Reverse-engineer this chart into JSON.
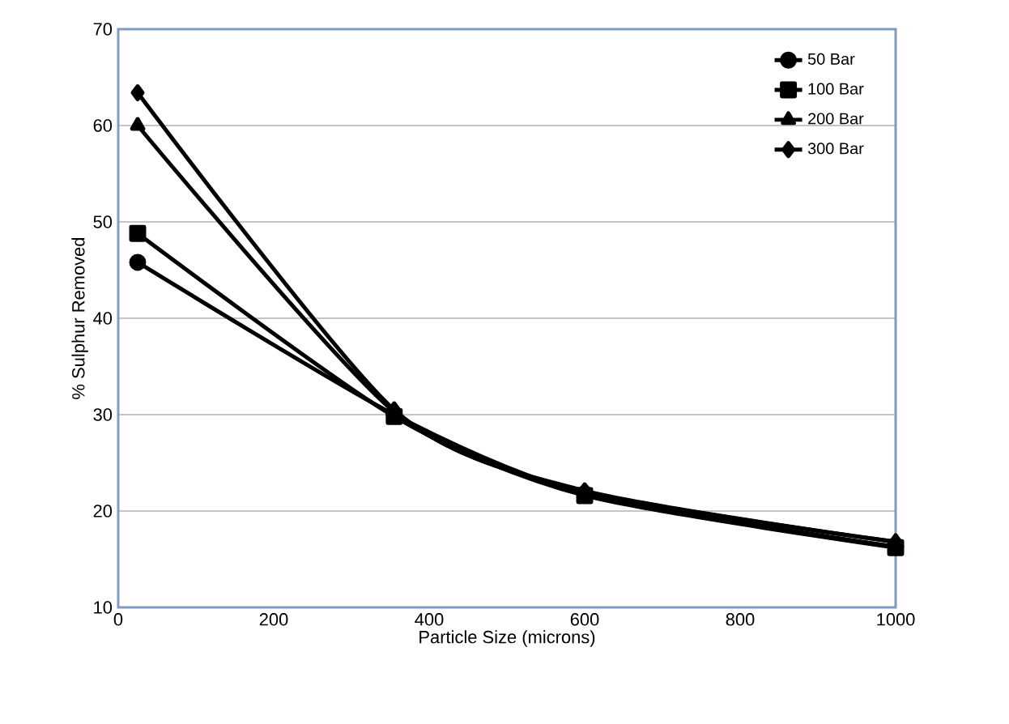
{
  "chart_data": {
    "type": "line",
    "xlabel": "Particle Size (microns)",
    "ylabel": "% Sulphur Removed",
    "xlim": [
      0,
      1000
    ],
    "xticks": [
      0,
      200,
      400,
      600,
      800,
      1000
    ],
    "ylim": [
      10,
      70
    ],
    "yticks": [
      10,
      20,
      30,
      40,
      50,
      60,
      70
    ],
    "grid": "y",
    "legend": "top right",
    "series": [
      {
        "name": "50 Bar",
        "color": "#000000",
        "marker": "circle",
        "x": [
          25,
          355,
          600,
          1000
        ],
        "values": [
          45.8,
          30.0,
          21.8,
          16.3
        ]
      },
      {
        "name": "100 Bar",
        "color": "#000000",
        "marker": "square",
        "x": [
          25,
          355,
          600,
          1000
        ],
        "values": [
          48.8,
          29.8,
          21.6,
          16.2
        ]
      },
      {
        "name": "200 Bar",
        "color": "#000000",
        "marker": "triangle",
        "x": [
          25,
          355,
          600,
          1000
        ],
        "values": [
          60.0,
          30.3,
          22.0,
          16.8
        ]
      },
      {
        "name": "300 Bar",
        "color": "#000000",
        "marker": "diamond",
        "x": [
          25,
          355,
          600,
          1000
        ],
        "values": [
          63.4,
          30.5,
          22.1,
          16.8
        ]
      }
    ]
  }
}
